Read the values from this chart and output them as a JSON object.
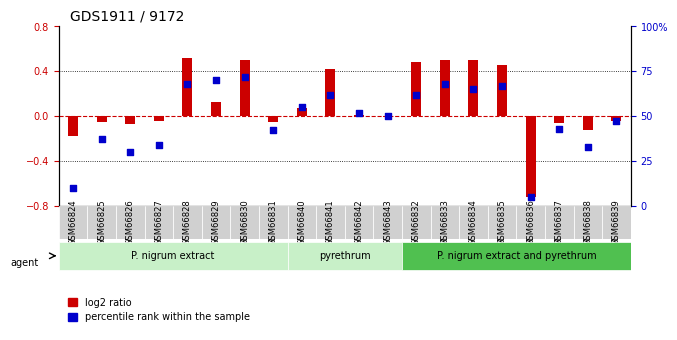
{
  "title": "GDS1911 / 9172",
  "samples": [
    "GSM66824",
    "GSM66825",
    "GSM66826",
    "GSM66827",
    "GSM66828",
    "GSM66829",
    "GSM66830",
    "GSM66831",
    "GSM66840",
    "GSM66841",
    "GSM66842",
    "GSM66843",
    "GSM66832",
    "GSM66833",
    "GSM66834",
    "GSM66835",
    "GSM66836",
    "GSM66837",
    "GSM66838",
    "GSM66839"
  ],
  "log2_ratio": [
    -0.18,
    -0.05,
    -0.07,
    -0.04,
    0.52,
    0.13,
    0.5,
    -0.05,
    0.07,
    0.42,
    0.01,
    -0.01,
    0.48,
    0.5,
    0.5,
    0.46,
    -0.72,
    -0.06,
    -0.12,
    -0.04
  ],
  "percentile": [
    10,
    37,
    30,
    34,
    68,
    70,
    72,
    42,
    55,
    62,
    52,
    50,
    62,
    68,
    65,
    67,
    5,
    43,
    33,
    47
  ],
  "groups": [
    {
      "label": "P. nigrum extract",
      "start": 0,
      "end": 8,
      "color": "#c8f0c8"
    },
    {
      "label": "pyrethrum",
      "start": 8,
      "end": 12,
      "color": "#c8f0c8"
    },
    {
      "label": "P. nigrum extract and pyrethrum",
      "start": 12,
      "end": 20,
      "color": "#50c050"
    }
  ],
  "bar_color": "#cc0000",
  "dot_color": "#0000cc",
  "bg_color": "#ffffff",
  "ylim_left": [
    -0.8,
    0.8
  ],
  "ylim_right": [
    0,
    100
  ],
  "yticks_left": [
    -0.8,
    -0.4,
    0.0,
    0.4,
    0.8
  ],
  "yticks_right": [
    0,
    25,
    50,
    75,
    100
  ],
  "ytick_labels_right": [
    "0",
    "25",
    "50",
    "75",
    "100%"
  ]
}
